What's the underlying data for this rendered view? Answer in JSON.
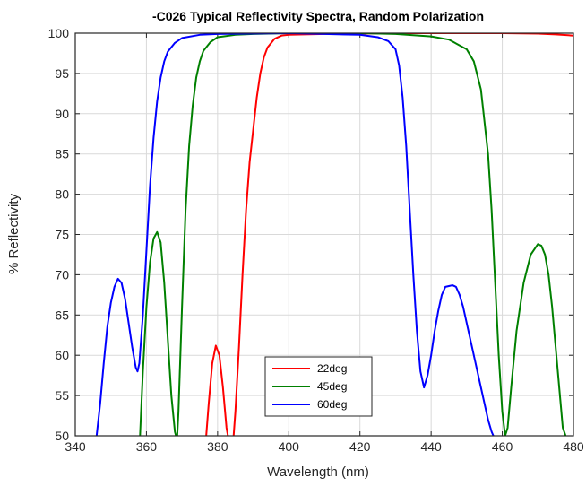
{
  "chart_data": {
    "type": "line",
    "title": "-C026 Typical Reflectivity Spectra, Random Polarization",
    "xlabel": "Wavelength (nm)",
    "ylabel": "% Reflectivity",
    "xlim": [
      340,
      480
    ],
    "ylim": [
      50,
      100
    ],
    "xticks": [
      340,
      360,
      380,
      400,
      420,
      440,
      460,
      480
    ],
    "yticks": [
      50,
      55,
      60,
      65,
      70,
      75,
      80,
      85,
      90,
      95,
      100
    ],
    "grid": true,
    "legend_position": "bottom-center",
    "series": [
      {
        "name": "22deg",
        "color": "#ff0000",
        "points": [
          [
            376.8,
            50
          ],
          [
            377.5,
            54
          ],
          [
            378.5,
            59
          ],
          [
            379.5,
            61.2
          ],
          [
            380.5,
            60
          ],
          [
            381.5,
            56
          ],
          [
            382.5,
            51
          ],
          [
            383.5,
            48.5
          ],
          [
            384.5,
            50
          ],
          [
            385,
            53
          ],
          [
            386,
            61
          ],
          [
            387,
            70
          ],
          [
            388,
            78
          ],
          [
            389,
            84
          ],
          [
            390,
            88
          ],
          [
            391,
            92
          ],
          [
            392,
            95
          ],
          [
            393,
            97
          ],
          [
            394,
            98.2
          ],
          [
            396,
            99.3
          ],
          [
            398,
            99.7
          ],
          [
            400,
            99.8
          ],
          [
            410,
            99.9
          ],
          [
            430,
            100
          ],
          [
            450,
            100
          ],
          [
            460,
            100
          ],
          [
            470,
            99.95
          ],
          [
            475,
            99.85
          ],
          [
            480,
            99.7
          ]
        ]
      },
      {
        "name": "45deg",
        "color": "#008000",
        "points": [
          [
            358.2,
            50
          ],
          [
            359,
            58
          ],
          [
            360,
            66
          ],
          [
            361,
            71.5
          ],
          [
            362,
            74.5
          ],
          [
            363,
            75.3
          ],
          [
            364,
            74
          ],
          [
            365,
            69
          ],
          [
            366,
            62
          ],
          [
            367,
            55
          ],
          [
            368,
            50.5
          ],
          [
            368.6,
            49.5
          ],
          [
            369,
            53
          ],
          [
            370,
            66
          ],
          [
            371,
            78
          ],
          [
            372,
            86
          ],
          [
            373,
            91
          ],
          [
            374,
            94.5
          ],
          [
            375,
            96.5
          ],
          [
            376,
            97.8
          ],
          [
            378,
            98.9
          ],
          [
            380,
            99.5
          ],
          [
            385,
            99.8
          ],
          [
            390,
            99.9
          ],
          [
            400,
            100
          ],
          [
            420,
            100
          ],
          [
            430,
            99.9
          ],
          [
            440,
            99.6
          ],
          [
            445,
            99.2
          ],
          [
            450,
            98
          ],
          [
            452,
            96.5
          ],
          [
            454,
            93
          ],
          [
            456,
            85
          ],
          [
            457,
            78
          ],
          [
            458,
            69
          ],
          [
            459,
            60
          ],
          [
            460,
            53
          ],
          [
            460.8,
            50
          ],
          [
            461.5,
            51
          ],
          [
            462.5,
            56
          ],
          [
            464,
            63
          ],
          [
            466,
            69
          ],
          [
            468,
            72.5
          ],
          [
            470,
            73.8
          ],
          [
            471,
            73.6
          ],
          [
            472,
            72.5
          ],
          [
            473,
            70
          ],
          [
            474,
            66
          ],
          [
            475,
            61
          ],
          [
            476,
            56
          ],
          [
            477,
            51
          ],
          [
            477.8,
            50
          ]
        ]
      },
      {
        "name": "60deg",
        "color": "#0000ff",
        "points": [
          [
            346,
            50
          ],
          [
            347,
            54
          ],
          [
            348,
            59
          ],
          [
            349,
            63.5
          ],
          [
            350,
            66.5
          ],
          [
            351,
            68.5
          ],
          [
            352,
            69.5
          ],
          [
            353,
            69
          ],
          [
            354,
            67
          ],
          [
            355,
            64
          ],
          [
            356,
            61
          ],
          [
            357,
            58.5
          ],
          [
            357.5,
            58
          ],
          [
            358,
            59
          ],
          [
            359,
            65
          ],
          [
            360,
            73
          ],
          [
            361,
            81
          ],
          [
            362,
            87
          ],
          [
            363,
            91.5
          ],
          [
            364,
            94.5
          ],
          [
            365,
            96.5
          ],
          [
            366,
            97.7
          ],
          [
            368,
            98.8
          ],
          [
            370,
            99.4
          ],
          [
            375,
            99.8
          ],
          [
            380,
            99.9
          ],
          [
            400,
            100
          ],
          [
            410,
            99.9
          ],
          [
            420,
            99.8
          ],
          [
            425,
            99.5
          ],
          [
            428,
            99
          ],
          [
            430,
            98
          ],
          [
            431,
            96
          ],
          [
            432,
            92
          ],
          [
            433,
            86
          ],
          [
            434,
            78
          ],
          [
            435,
            70
          ],
          [
            436,
            63
          ],
          [
            437,
            58
          ],
          [
            438,
            56
          ],
          [
            439,
            57.5
          ],
          [
            440,
            60
          ],
          [
            441,
            63
          ],
          [
            442,
            65.5
          ],
          [
            443,
            67.5
          ],
          [
            444,
            68.5
          ],
          [
            445,
            68.6
          ],
          [
            446,
            68.7
          ],
          [
            447,
            68.5
          ],
          [
            448,
            67.5
          ],
          [
            449,
            66
          ],
          [
            450,
            64
          ],
          [
            451,
            62
          ],
          [
            452,
            60
          ],
          [
            453,
            58
          ],
          [
            454,
            56
          ],
          [
            455,
            54
          ],
          [
            456,
            52
          ],
          [
            457,
            50.5
          ],
          [
            457.5,
            50
          ]
        ]
      }
    ]
  }
}
